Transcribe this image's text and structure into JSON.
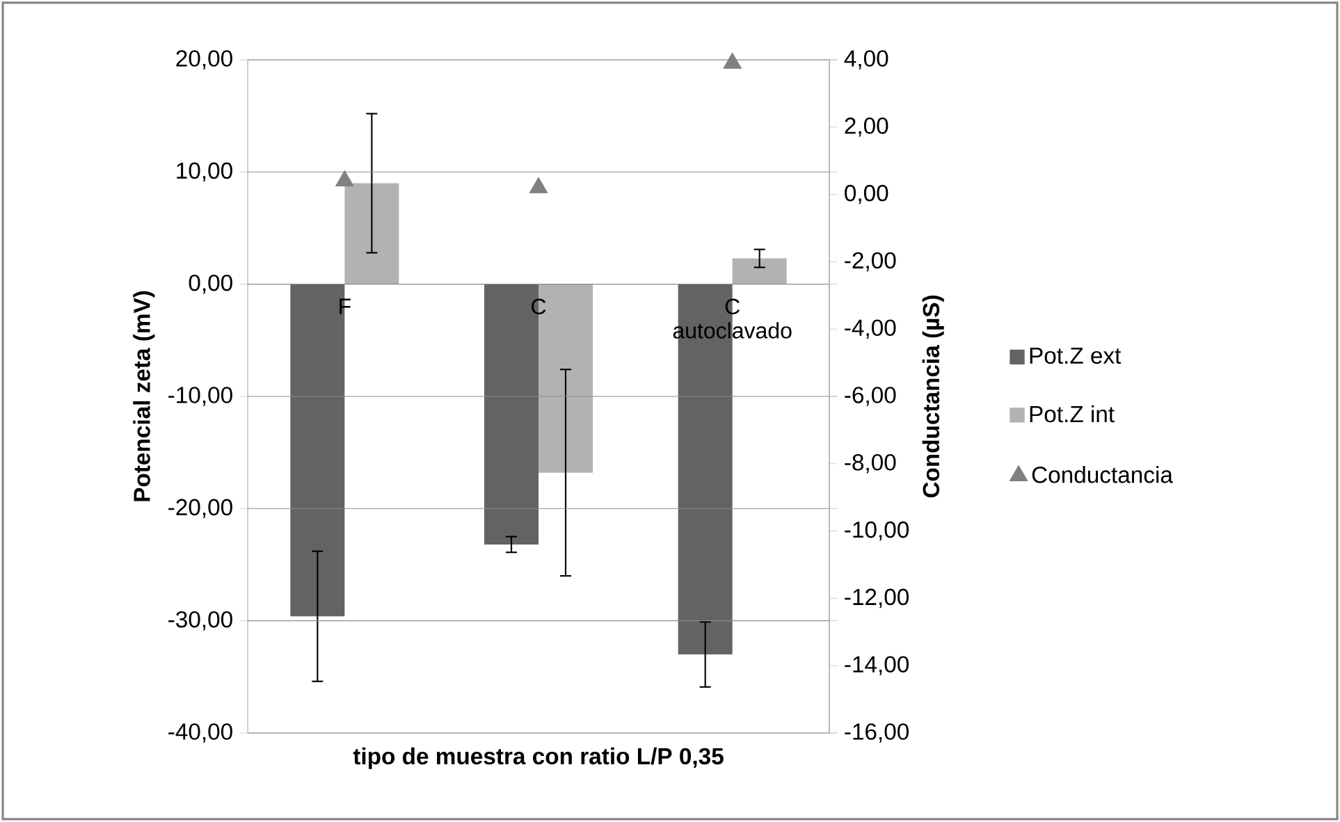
{
  "chart_data": {
    "type": "bar",
    "categories": [
      "F",
      "C",
      "C autoclavado"
    ],
    "xlabel": "tipo de muestra con ratio L/P 0,35",
    "ylabel": "Potencial zeta (mV)",
    "y2label": "Conductancia (µS)",
    "ylim": [
      -40,
      20
    ],
    "yticks": [
      {
        "value": -40,
        "label": "-40,00"
      },
      {
        "value": -30,
        "label": "-30,00"
      },
      {
        "value": -20,
        "label": "-20,00"
      },
      {
        "value": -10,
        "label": "-10,00"
      },
      {
        "value": 0,
        "label": "0,00"
      },
      {
        "value": 10,
        "label": "10,00"
      },
      {
        "value": 20,
        "label": "20,00"
      }
    ],
    "y2lim": [
      -16,
      4
    ],
    "y2ticks": [
      {
        "value": -16,
        "label": "-16,00"
      },
      {
        "value": -14,
        "label": "-14,00"
      },
      {
        "value": -12,
        "label": "-12,00"
      },
      {
        "value": -10,
        "label": "-10,00"
      },
      {
        "value": -8,
        "label": "-8,00"
      },
      {
        "value": -6,
        "label": "-6,00"
      },
      {
        "value": -4,
        "label": "-4,00"
      },
      {
        "value": -2,
        "label": "-2,00"
      },
      {
        "value": 0,
        "label": "0,00"
      },
      {
        "value": 2,
        "label": "2,00"
      },
      {
        "value": 4,
        "label": "4,00"
      }
    ],
    "grid": "y",
    "legend": "right",
    "series": [
      {
        "name": "Pot.Z ext",
        "color": "#636363",
        "values": [
          -29.6,
          -23.2,
          -33.0
        ],
        "errors": [
          5.8,
          0.7,
          2.9
        ]
      },
      {
        "name": "Pot.Z int",
        "color": "#b2b2b2",
        "values": [
          9.0,
          -16.8,
          2.3
        ],
        "errors": [
          6.2,
          9.2,
          0.8
        ]
      },
      {
        "name": "Conductancia",
        "type": "scatter",
        "axis": "y2",
        "marker": "triangle",
        "color": "#808080",
        "values": [
          0.4,
          0.2,
          3.9
        ]
      }
    ]
  }
}
